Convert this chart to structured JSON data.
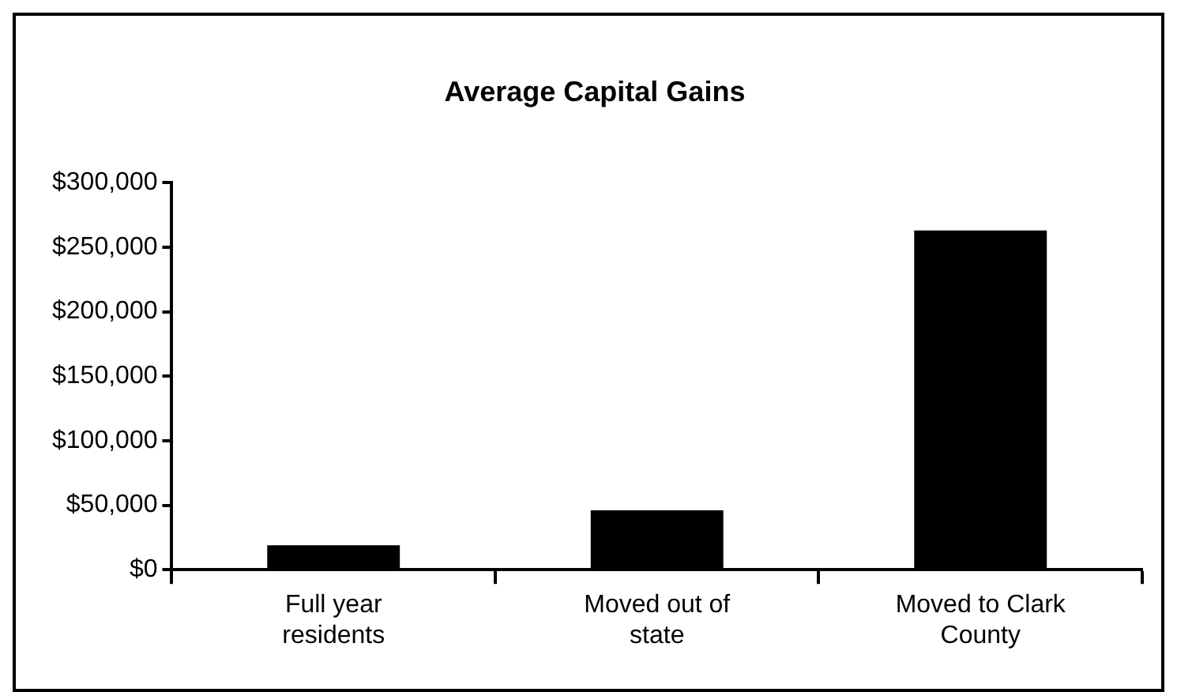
{
  "chart_data": {
    "type": "bar",
    "title": "Average Capital Gains",
    "categories": [
      "Full year residents",
      "Moved out of state",
      "Moved to Clark County"
    ],
    "values": [
      19000,
      46000,
      263000
    ],
    "color": "#000000",
    "ylim": [
      0,
      300000
    ],
    "yticks": [
      {
        "value": 0,
        "label": "$0"
      },
      {
        "value": 50000,
        "label": "$50,000"
      },
      {
        "value": 100000,
        "label": "$100,000"
      },
      {
        "value": 150000,
        "label": "$150,000"
      },
      {
        "value": 200000,
        "label": "$200,000"
      },
      {
        "value": 250000,
        "label": "$250,000"
      },
      {
        "value": 300000,
        "label": "$300,000"
      }
    ],
    "grid": false,
    "legend": false
  }
}
